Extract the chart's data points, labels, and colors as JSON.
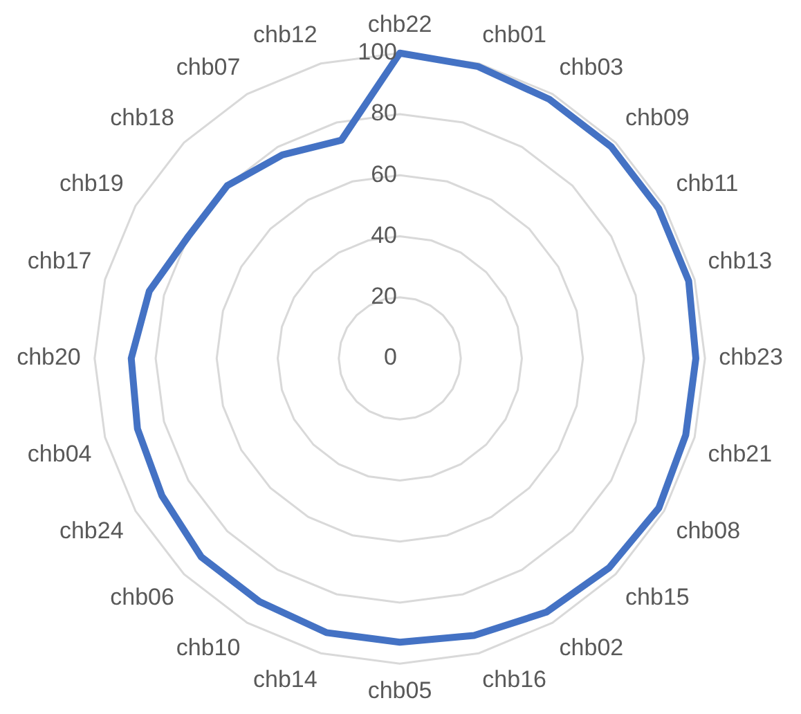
{
  "chart_data": {
    "type": "radar",
    "categories": [
      "chb22",
      "chb01",
      "chb03",
      "chb09",
      "chb11",
      "chb13",
      "chb23",
      "chb21",
      "chb08",
      "chb15",
      "chb02",
      "chb16",
      "chb05",
      "chb14",
      "chb10",
      "chb06",
      "chb24",
      "chb04",
      "chb20",
      "chb17",
      "chb19",
      "chb18",
      "chb07",
      "chb12"
    ],
    "series": [
      {
        "color": "#4472c4",
        "values": [
          100,
          99,
          98,
          98,
          98,
          98,
          97,
          97,
          98,
          97,
          96,
          94,
          93,
          93,
          92,
          92,
          90,
          89,
          88,
          85,
          80,
          80,
          77,
          74
        ]
      }
    ],
    "ylim": [
      0,
      100
    ],
    "yticks": [
      0,
      20,
      40,
      60,
      80,
      100
    ],
    "grid": true,
    "legend": false,
    "marker": "none"
  }
}
